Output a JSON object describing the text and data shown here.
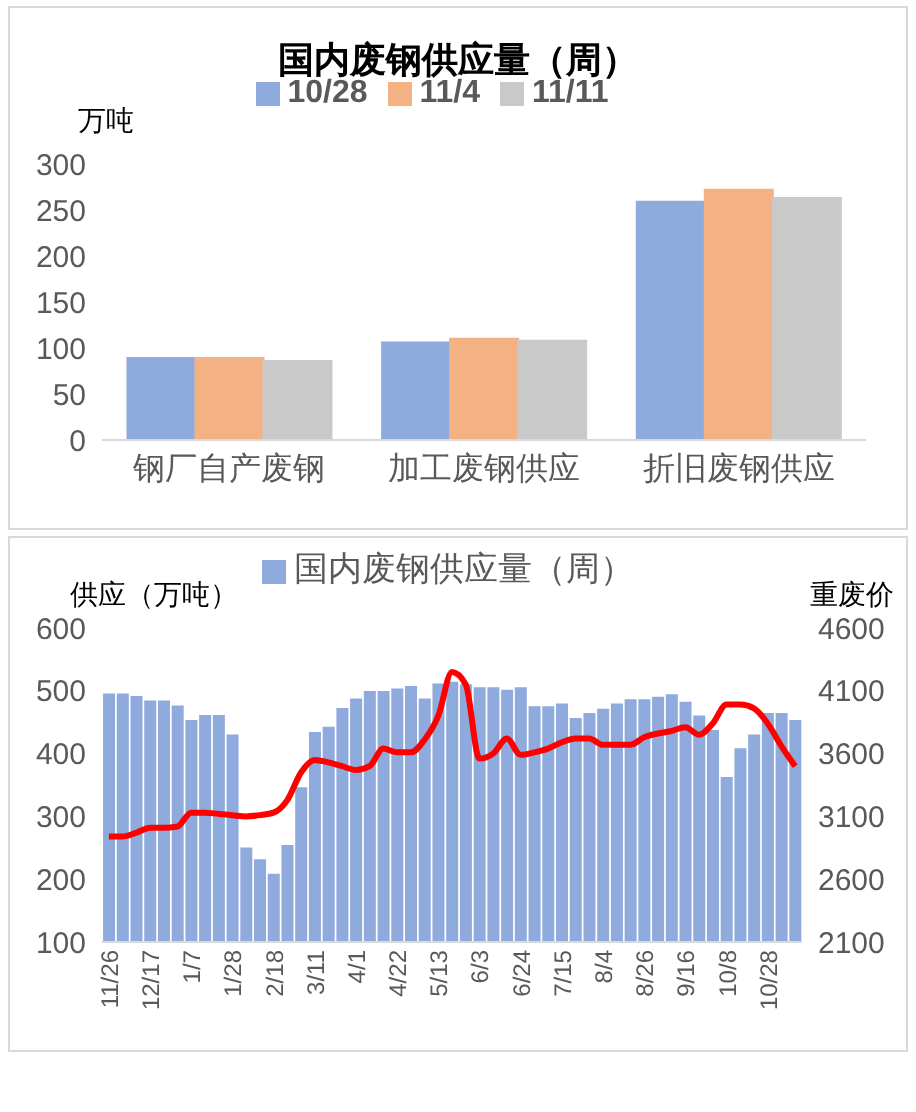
{
  "chart_data": [
    {
      "type": "bar",
      "title": "国内废钢供应量（周）",
      "ylabel": "万吨",
      "categories": [
        "钢厂自产废钢",
        "加工废钢供应",
        "折旧废钢供应"
      ],
      "series": [
        {
          "name": "10/28",
          "color": "#8faadc",
          "values": [
            89,
            106,
            259
          ]
        },
        {
          "name": "11/4",
          "color": "#f4b183",
          "values": [
            89,
            110,
            272
          ]
        },
        {
          "name": "11/11",
          "color": "#c9c9c9",
          "values": [
            86,
            108,
            263
          ]
        }
      ],
      "ylim": [
        0,
        300
      ],
      "yticks": [
        0,
        50,
        100,
        150,
        200,
        250,
        300
      ],
      "legend": "top"
    },
    {
      "type": "bar",
      "ylabel": "供应（万吨）",
      "y2label": "重废价",
      "categories": [
        "11/26",
        null,
        null,
        "12/17",
        null,
        null,
        "1/7",
        null,
        null,
        "1/28",
        null,
        null,
        "2/18",
        null,
        null,
        "3/11",
        null,
        null,
        "4/1",
        null,
        null,
        "4/22",
        null,
        null,
        "5/13",
        null,
        null,
        "6/3",
        null,
        null,
        "6/24",
        null,
        null,
        "7/15",
        null,
        null,
        "8/4",
        null,
        null,
        "8/26",
        null,
        null,
        "9/16",
        null,
        null,
        "10/8",
        null,
        null,
        "10/28",
        null,
        null
      ],
      "series": [
        {
          "name": "国内废钢供应量（周）",
          "color": "#8faadc",
          "values": [
            494,
            494,
            490,
            483,
            483,
            475,
            452,
            460,
            460,
            429,
            249,
            230,
            207,
            253,
            345,
            433,
            441,
            471,
            486,
            498,
            498,
            502,
            506,
            486,
            510,
            513,
            509,
            504,
            504,
            500,
            504,
            474,
            474,
            478,
            455,
            463,
            470,
            478,
            485,
            485,
            489,
            493,
            481,
            459,
            436,
            361,
            407,
            429,
            463,
            463,
            452
          ]
        },
        {
          "type": "line",
          "axis": "y2",
          "color": "#ff0000",
          "values": [
            2940,
            2940,
            2970,
            3010,
            3010,
            3020,
            3130,
            3130,
            3120,
            3110,
            3100,
            3110,
            3130,
            3230,
            3450,
            3550,
            3530,
            3500,
            3470,
            3500,
            3640,
            3610,
            3610,
            3710,
            3900,
            4250,
            4150,
            3560,
            3600,
            3720,
            3590,
            3610,
            3640,
            3690,
            3720,
            3720,
            3670,
            3670,
            3670,
            3730,
            3760,
            3780,
            3810,
            3750,
            3840,
            3990,
            3990,
            3960,
            3840,
            3660,
            3500
          ]
        }
      ],
      "ylim": [
        100,
        600
      ],
      "yticks": [
        100,
        200,
        300,
        400,
        500,
        600
      ],
      "y2lim": [
        2100,
        4600
      ],
      "y2ticks": [
        2100,
        2600,
        3100,
        3600,
        4100,
        4600
      ],
      "legend": "top",
      "marker": "none"
    }
  ]
}
